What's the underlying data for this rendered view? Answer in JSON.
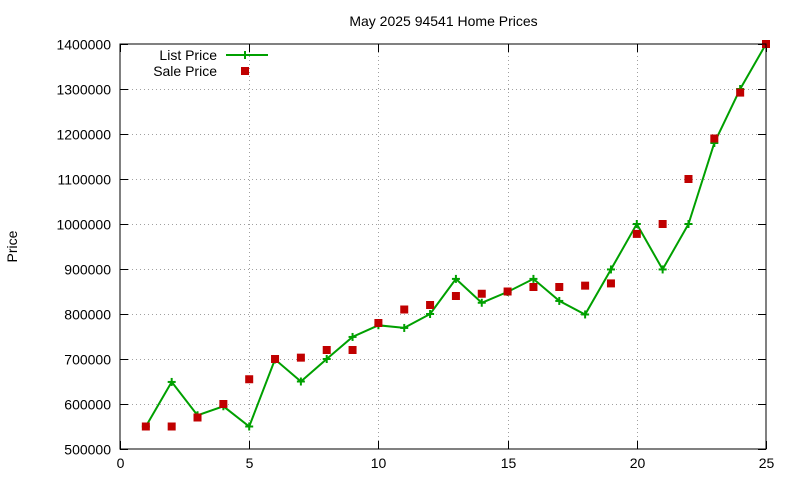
{
  "chart_data": {
    "type": "line",
    "title": "May 2025 94541 Home Prices",
    "xlabel": "",
    "ylabel": "Price",
    "xlim": [
      0,
      25
    ],
    "ylim": [
      500000,
      1400000
    ],
    "x_ticks": [
      0,
      5,
      10,
      15,
      20,
      25
    ],
    "y_ticks": [
      500000,
      600000,
      700000,
      800000,
      900000,
      1000000,
      1100000,
      1200000,
      1300000,
      1400000
    ],
    "grid": true,
    "legend_position": "top-left",
    "series": [
      {
        "name": "List Price",
        "style": "line-with-plus-markers",
        "color": "#00a000",
        "x": [
          1,
          2,
          3,
          4,
          5,
          6,
          7,
          8,
          9,
          10,
          11,
          12,
          13,
          14,
          15,
          16,
          17,
          18,
          19,
          20,
          21,
          22,
          23,
          24,
          25
        ],
        "values": [
          550000,
          649000,
          575000,
          595000,
          550000,
          699000,
          650000,
          700000,
          749000,
          775000,
          769000,
          800000,
          878000,
          825000,
          849000,
          878000,
          829000,
          799000,
          899000,
          1000000,
          899000,
          1000000,
          1180000,
          1300000,
          1400000
        ]
      },
      {
        "name": "Sale Price",
        "style": "square-markers",
        "color": "#c00000",
        "x": [
          1,
          2,
          3,
          4,
          5,
          6,
          7,
          8,
          9,
          10,
          11,
          12,
          13,
          14,
          15,
          16,
          17,
          18,
          19,
          20,
          21,
          22,
          23,
          24,
          25
        ],
        "values": [
          550000,
          550000,
          570000,
          600000,
          655000,
          700000,
          703000,
          720000,
          720000,
          780000,
          810000,
          820000,
          840000,
          845000,
          850000,
          860000,
          860000,
          863000,
          868000,
          978000,
          1000000,
          1100000,
          1190000,
          1292000,
          1400000
        ]
      }
    ]
  }
}
